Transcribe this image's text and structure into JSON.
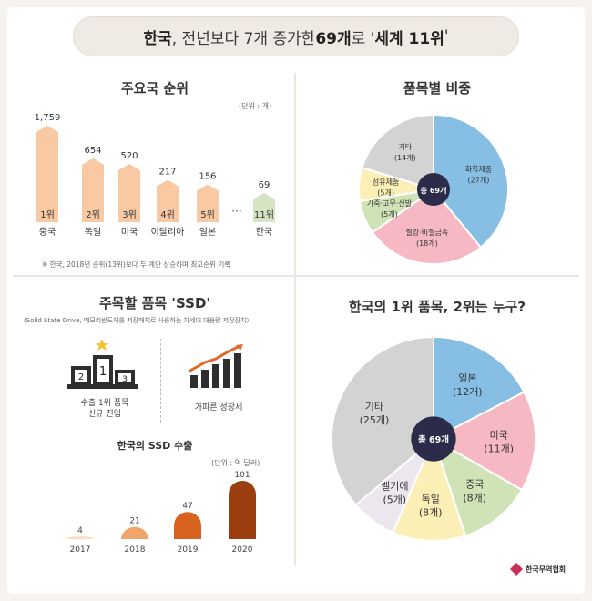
{
  "title": {
    "prefix": "한국",
    "middle": ", 전년보다 7개 증가한 ",
    "count": "69개",
    "suffix": "로 '",
    "rank": "세계 11위",
    "end": "'"
  },
  "ranking": {
    "title": "주요국 순위",
    "unit": "(단위 : 개)",
    "note": "※ 한국, 2018년 순위(13위)보다 두 계단 상승하며 최고순위 기록",
    "ellipsis": "···",
    "chart_data": {
      "type": "bar",
      "title": "주요국 순위",
      "categories": [
        "중국",
        "독일",
        "미국",
        "이탈리아",
        "일본",
        "한국"
      ],
      "values": [
        1759,
        654,
        520,
        217,
        156,
        69
      ],
      "value_labels": [
        "1,759",
        "654",
        "520",
        "217",
        "156",
        "69"
      ],
      "rank_labels": [
        "1위",
        "2위",
        "3위",
        "4위",
        "5위",
        "11위"
      ],
      "colors": [
        "#f8c9a2",
        "#f8c9a2",
        "#f8c9a2",
        "#f8c9a2",
        "#f8c9a2",
        "#d6e4c4"
      ]
    }
  },
  "category_share": {
    "title": "품목별 비중",
    "center": "총 69개",
    "chart_data": {
      "type": "pie",
      "title": "품목별 비중",
      "slices": [
        {
          "label": "화학제품",
          "value": 27,
          "value_label": "(27개)",
          "color": "#86bfe3"
        },
        {
          "label": "철강·비철금속",
          "value": 18,
          "value_label": "(18개)",
          "color": "#f6b8c3"
        },
        {
          "label": "가죽·고무·신발",
          "value": 5,
          "value_label": "(5개)",
          "color": "#cfe3b7"
        },
        {
          "label": "섬유제품",
          "value": 5,
          "value_label": "(5개)",
          "color": "#fbefb6"
        },
        {
          "label": "기타",
          "value": 14,
          "value_label": "(14개)",
          "color": "#d3d3d3"
        }
      ]
    }
  },
  "ssd": {
    "title": "주목할 품목 'SSD'",
    "subtitle": "(Solid State Drive, 메모리반도체를 저장매체로 사용하는 차세대 대용량 저장장치)",
    "icon1_label1": "수출 1위 품목",
    "icon1_label2": "신규 진입",
    "icon2_label": "가파른 성장세",
    "podium": [
      "2",
      "1",
      "3"
    ],
    "export_title": "한국의 SSD 수출",
    "unit": "(단위 : 억 달러)",
    "chart_data": {
      "type": "bar",
      "title": "한국의 SSD 수출",
      "categories": [
        "2017",
        "2018",
        "2019",
        "2020"
      ],
      "values": [
        4,
        21,
        47,
        101
      ],
      "colors": [
        "#f7dfc4",
        "#f0a66a",
        "#d9621f",
        "#9c3d10"
      ]
    }
  },
  "korea_top": {
    "title": "한국의 1위 품목, 2위는 누구?",
    "center": "총 69개",
    "chart_data": {
      "type": "pie",
      "title": "한국의 1위 품목, 2위는 누구?",
      "slices": [
        {
          "label": "일본",
          "value": 12,
          "value_label": "(12개)",
          "color": "#86bfe3"
        },
        {
          "label": "미국",
          "value": 11,
          "value_label": "(11개)",
          "color": "#f6b8c3"
        },
        {
          "label": "중국",
          "value": 8,
          "value_label": "(8개)",
          "color": "#cfe3b7"
        },
        {
          "label": "독일",
          "value": 8,
          "value_label": "(8개)",
          "color": "#fbefb6"
        },
        {
          "label": "벨기에",
          "value": 5,
          "value_label": "(5개)",
          "color": "#ece6ef"
        },
        {
          "label": "기타",
          "value": 25,
          "value_label": "(25개)",
          "color": "#d3d3d3"
        }
      ]
    }
  },
  "logo": {
    "text": "한국무역협회",
    "color": "#c8305a"
  },
  "colors": {
    "center_circle": "#2c2c4a",
    "bar_orange": "#f8c9a2",
    "bar_green": "#d6e4c4"
  }
}
